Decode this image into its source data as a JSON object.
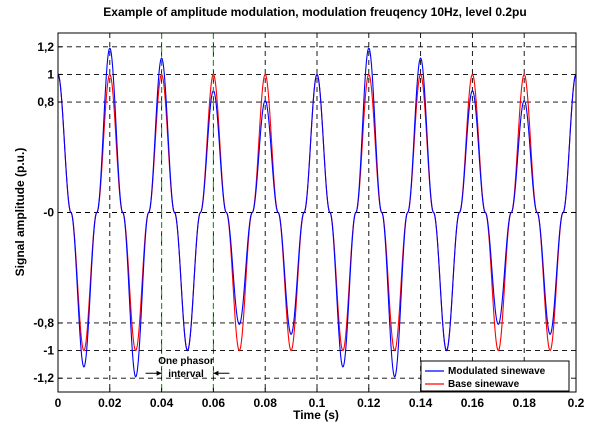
{
  "chart_data": {
    "type": "line",
    "title": "Example of amplitude modulation, modulation freuqency 10Hz, level 0.2pu",
    "xlabel": "Time (s)",
    "ylabel": "Signal amplitude (p.u.)",
    "xlim": [
      0,
      0.2
    ],
    "ylim": [
      -1.3,
      1.3
    ],
    "xticks": [
      0,
      0.02,
      0.04,
      0.06,
      0.08,
      0.1,
      0.12,
      0.14,
      0.16,
      0.18,
      0.2
    ],
    "xtick_labels": [
      "0",
      "0.02",
      "0.04",
      "0.06",
      "0.08",
      "0.1",
      "0.12",
      "0.14",
      "0.16",
      "0.18",
      "0.2"
    ],
    "yticks": [
      1.2,
      1,
      0.8,
      0,
      -0.8,
      -1,
      -1.2
    ],
    "ytick_labels": [
      "1,2",
      "1",
      "0,8",
      "-0",
      "-0,8",
      "-1",
      "-1,2"
    ],
    "grid": true,
    "grid_style": "dashed-black",
    "legend_position": "bottom-right",
    "series": [
      {
        "name": "Modulated sinewave",
        "color": "#0000ff",
        "x": [
          0,
          0.005,
          0.01,
          0.015,
          0.02,
          0.025,
          0.03,
          0.035,
          0.04,
          0.045,
          0.05,
          0.055,
          0.06,
          0.065,
          0.07,
          0.075,
          0.08,
          0.085,
          0.09,
          0.095,
          0.1,
          0.105,
          0.11,
          0.115,
          0.12,
          0.125,
          0.13,
          0.135,
          0.14,
          0.145,
          0.15,
          0.155,
          0.16,
          0.165,
          0.17,
          0.175,
          0.18,
          0.185,
          0.19,
          0.195,
          0.2
        ],
        "values": [
          1.0,
          0,
          -1.118,
          0,
          1.19,
          0,
          -1.19,
          0,
          1.118,
          0,
          -1.0,
          0,
          0.882,
          0,
          -0.81,
          0,
          0.81,
          0,
          -0.882,
          0,
          1.0,
          0,
          -1.118,
          0,
          1.19,
          0,
          -1.19,
          0,
          1.118,
          0,
          -1.0,
          0,
          0.882,
          0,
          -0.81,
          0,
          0.81,
          0,
          -0.882,
          0,
          1.0
        ]
      },
      {
        "name": "Base sinewave",
        "color": "#ff0000",
        "x": [
          0,
          0.005,
          0.01,
          0.015,
          0.02,
          0.025,
          0.03,
          0.035,
          0.04,
          0.045,
          0.05,
          0.055,
          0.06,
          0.065,
          0.07,
          0.075,
          0.08,
          0.085,
          0.09,
          0.095,
          0.1,
          0.105,
          0.11,
          0.115,
          0.12,
          0.125,
          0.13,
          0.135,
          0.14,
          0.145,
          0.15,
          0.155,
          0.16,
          0.165,
          0.17,
          0.175,
          0.18,
          0.185,
          0.19,
          0.195,
          0.2
        ],
        "values": [
          1,
          0,
          -1,
          0,
          1,
          0,
          -1,
          0,
          1,
          0,
          -1,
          0,
          1,
          0,
          -1,
          0,
          1,
          0,
          -1,
          0,
          1,
          0,
          -1,
          0,
          1,
          0,
          -1,
          0,
          1,
          0,
          -1,
          0,
          1,
          0,
          -1,
          0,
          1,
          0,
          -1,
          0,
          1
        ]
      }
    ],
    "markers": [
      {
        "x": 0.04,
        "color": "#00c000",
        "style": "dash-dot"
      },
      {
        "x": 0.06,
        "color": "#00c000",
        "style": "dash-dot"
      }
    ],
    "annotation": {
      "line1": "One phasor",
      "line2": "interval",
      "x_from": 0.04,
      "x_to": 0.06
    }
  }
}
